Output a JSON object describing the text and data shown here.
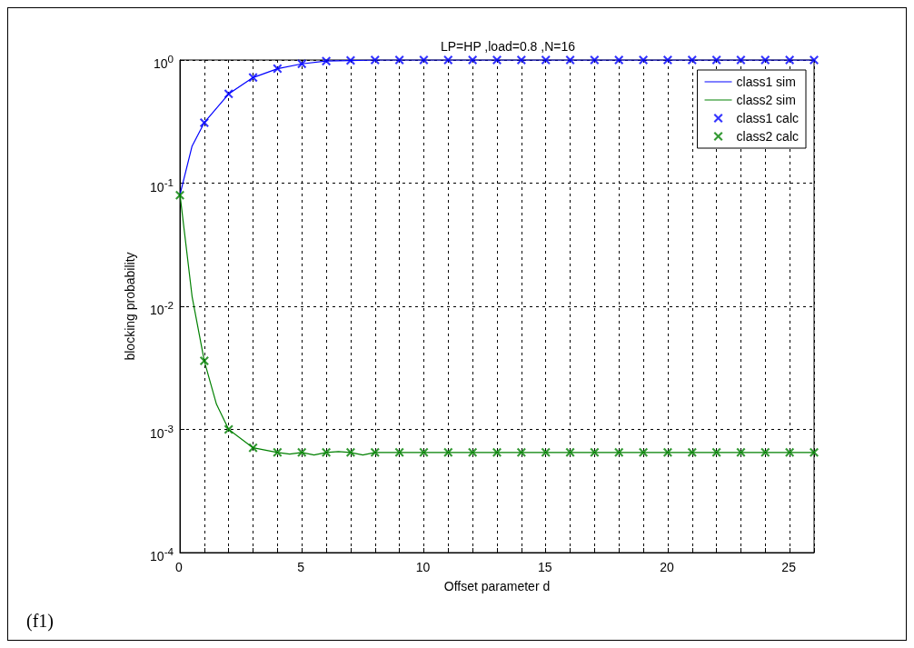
{
  "chart_data": {
    "type": "line",
    "title": "LP=HP ,load=0.8 ,N=16",
    "xlabel": "Offset parameter d",
    "ylabel": "blocking probability",
    "annotations": [
      "(f1)"
    ],
    "log": "y",
    "grid": true,
    "legend": "top right",
    "xlim": [
      0,
      26
    ],
    "xticks": [
      0,
      {
        "value": 1,
        "label": null
      },
      {
        "value": 2,
        "label": null
      },
      {
        "value": 3,
        "label": null
      },
      {
        "value": 4,
        "label": null
      },
      5,
      {
        "value": 6,
        "label": null
      },
      {
        "value": 7,
        "label": null
      },
      {
        "value": 8,
        "label": null
      },
      {
        "value": 9,
        "label": null
      },
      10,
      {
        "value": 11,
        "label": null
      },
      {
        "value": 12,
        "label": null
      },
      {
        "value": 13,
        "label": null
      },
      {
        "value": 14,
        "label": null
      },
      15,
      {
        "value": 16,
        "label": null
      },
      {
        "value": 17,
        "label": null
      },
      {
        "value": 18,
        "label": null
      },
      {
        "value": 19,
        "label": null
      },
      20,
      {
        "value": 21,
        "label": null
      },
      {
        "value": 22,
        "label": null
      },
      {
        "value": 23,
        "label": null
      },
      {
        "value": 24,
        "label": null
      },
      25,
      {
        "value": 26,
        "label": null
      }
    ],
    "ylim": [
      0.0001,
      1
    ],
    "yticks": [
      {
        "value": 0.0001,
        "label": "10$^{-4}$"
      },
      {
        "value": 0.001,
        "label": "10$^{-3}$"
      },
      {
        "value": 0.01,
        "label": "10$^{-2}$"
      },
      {
        "value": 0.1,
        "label": "10$^{-1}$"
      },
      {
        "value": 1,
        "label": "10$^{0}$"
      }
    ],
    "series": [
      {
        "name": "class1 sim",
        "marker": "none",
        "color": "#0000ff",
        "x": [
          0,
          0.5,
          1,
          2,
          3,
          4,
          5,
          6,
          7,
          8,
          9,
          10,
          11,
          12,
          13,
          14,
          15,
          16,
          17,
          18,
          19,
          20,
          21,
          22,
          23,
          24,
          25,
          26
        ],
        "values": [
          0.08,
          0.2,
          0.31,
          0.53,
          0.72,
          0.85,
          0.93,
          0.98,
          0.99,
          1,
          1,
          1,
          1,
          1,
          1,
          1,
          1,
          1,
          1,
          1,
          1,
          1,
          1,
          1,
          1,
          1,
          1,
          1
        ]
      },
      {
        "name": "class2 sim",
        "marker": "none",
        "color": "#008000",
        "x": [
          0,
          0.5,
          1,
          1.5,
          2,
          3,
          4,
          4.5,
          5,
          5.5,
          6,
          6.5,
          7,
          7.5,
          8,
          9,
          10,
          11,
          12,
          13,
          14,
          15,
          16,
          17,
          18,
          19,
          20,
          21,
          22,
          23,
          24,
          25,
          26
        ],
        "values": [
          0.082,
          0.012,
          0.0036,
          0.0016,
          0.001,
          0.00071,
          0.00065,
          0.00063,
          0.00065,
          0.00062,
          0.00065,
          0.00066,
          0.00065,
          0.00062,
          0.00065,
          0.00065,
          0.00065,
          0.00065,
          0.00065,
          0.00065,
          0.00065,
          0.00065,
          0.00065,
          0.00065,
          0.00065,
          0.00065,
          0.00065,
          0.00065,
          0.00065,
          0.00065,
          0.00065,
          0.00065,
          0.00065
        ]
      },
      {
        "name": "class1 calc",
        "type": "scatter",
        "marker": "cross",
        "color": "#0000ff",
        "x": [
          1,
          2,
          3,
          4,
          5,
          6,
          7,
          8,
          9,
          10,
          11,
          12,
          13,
          14,
          15,
          16,
          17,
          18,
          19,
          20,
          21,
          22,
          23,
          24,
          25,
          26
        ],
        "values": [
          0.31,
          0.53,
          0.72,
          0.85,
          0.93,
          0.98,
          0.99,
          1,
          1,
          1,
          1,
          1,
          1,
          1,
          1,
          1,
          1,
          1,
          1,
          1,
          1,
          1,
          1,
          1,
          1,
          1
        ]
      },
      {
        "name": "class2 calc",
        "type": "scatter",
        "marker": "cross",
        "color": "#008000",
        "x": [
          0,
          1,
          2,
          3,
          4,
          5,
          6,
          7,
          8,
          9,
          10,
          11,
          12,
          13,
          14,
          15,
          16,
          17,
          18,
          19,
          20,
          21,
          22,
          23,
          24,
          25,
          26
        ],
        "values": [
          0.08,
          0.0036,
          0.001,
          0.00071,
          0.00065,
          0.00065,
          0.00065,
          0.00065,
          0.00065,
          0.00065,
          0.00065,
          0.00065,
          0.00065,
          0.00065,
          0.00065,
          0.00065,
          0.00065,
          0.00065,
          0.00065,
          0.00065,
          0.00065,
          0.00065,
          0.00065,
          0.00065,
          0.00065,
          0.00065,
          0.00065
        ]
      }
    ]
  }
}
